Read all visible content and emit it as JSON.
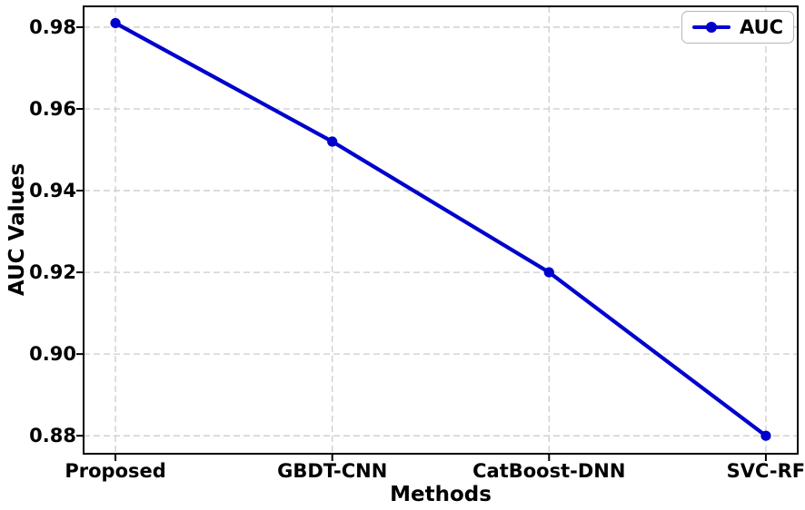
{
  "chart_data": {
    "type": "line",
    "categories": [
      "Proposed",
      "GBDT-CNN",
      "CatBoost-DNN",
      "SVC-RF"
    ],
    "series": [
      {
        "name": "AUC",
        "values": [
          0.981,
          0.952,
          0.92,
          0.88
        ]
      }
    ],
    "title": "",
    "xlabel": "Methods",
    "ylabel": "AUC Values",
    "ylim": [
      0.8756,
      0.9851
    ],
    "yticks": [
      0.88,
      0.9,
      0.92,
      0.94,
      0.96,
      0.98
    ],
    "ytick_labels": [
      "0.88",
      "0.90",
      "0.92",
      "0.94",
      "0.96",
      "0.98"
    ],
    "grid": true,
    "grid_style": "dashed",
    "legend_position": "top-right",
    "line_color": "#0000CD",
    "grid_color": "#cccccc",
    "axis_color": "#000000",
    "text_color": "#000000"
  }
}
